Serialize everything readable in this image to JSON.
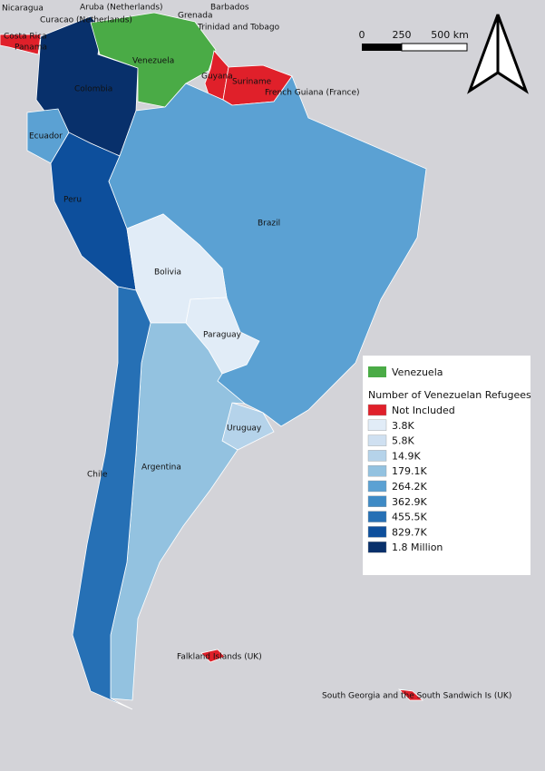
{
  "map": {
    "labels": [
      "Nicaragua",
      "Aruba (Netherlands)",
      "Barbados",
      "Curacao (Netherlands)",
      "Grenada",
      "Costa Rica",
      "Trinidad and Tobago",
      "Panama",
      "Venezuela",
      "Guyana",
      "Suriname",
      "French Guiana (France)",
      "Colombia",
      "Ecuador",
      "Brazil",
      "Peru",
      "Bolivia",
      "Paraguay",
      "Uruguay",
      "Chile",
      "Argentina",
      "Falkland Islands (UK)",
      "South Georgia and the South Sandwich Is (UK)"
    ],
    "scale_bar": [
      "0",
      "250",
      "500 km"
    ],
    "legend": {
      "venezuela": {
        "label": "Venezuela",
        "color": "#4aab46"
      },
      "heading": "Number of Venezuelan Refugees",
      "items": [
        {
          "label": "Not Included",
          "color": "#e0202a"
        },
        {
          "label": "3.8K",
          "color": "#e1ecf7"
        },
        {
          "label": "5.8K",
          "color": "#cfe0f1"
        },
        {
          "label": "14.9K",
          "color": "#b5d3ea"
        },
        {
          "label": "179.1K",
          "color": "#93c2e0"
        },
        {
          "label": "264.2K",
          "color": "#5ba1d3"
        },
        {
          "label": "362.9K",
          "color": "#3e8ac5"
        },
        {
          "label": "455.5K",
          "color": "#2670b5"
        },
        {
          "label": "829.7K",
          "color": "#0d4f9c"
        },
        {
          "label": "1.8 Million",
          "color": "#08306b"
        }
      ]
    }
  }
}
